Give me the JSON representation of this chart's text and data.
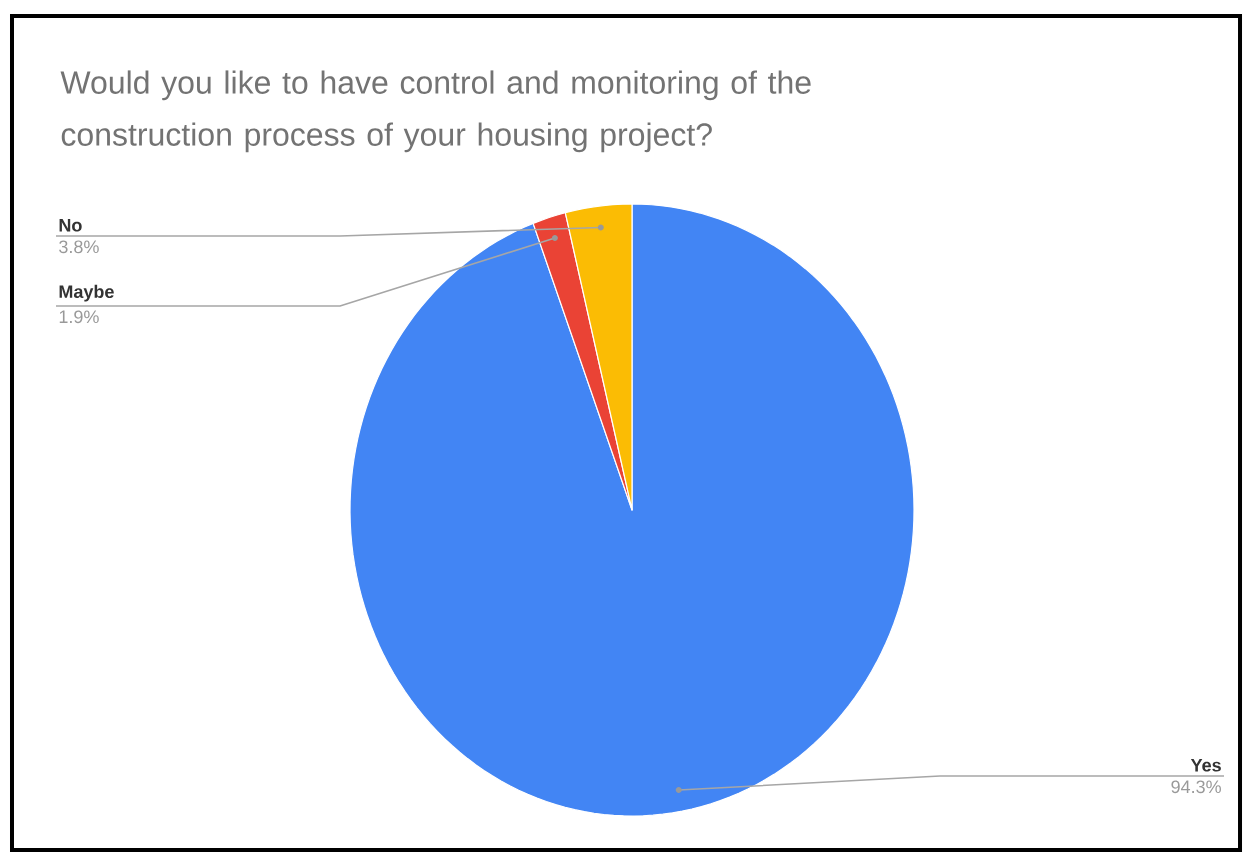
{
  "chart_data": {
    "type": "pie",
    "title": "Would you like to have control and monitoring of the construction process of your housing project?",
    "categories": [
      "Yes",
      "Maybe",
      "No"
    ],
    "values": [
      94.3,
      1.9,
      3.8
    ],
    "value_labels": [
      "94.3%",
      "1.9%",
      "3.8%"
    ],
    "colors": [
      "#4285f4",
      "#ea4335",
      "#fbbc04"
    ]
  }
}
